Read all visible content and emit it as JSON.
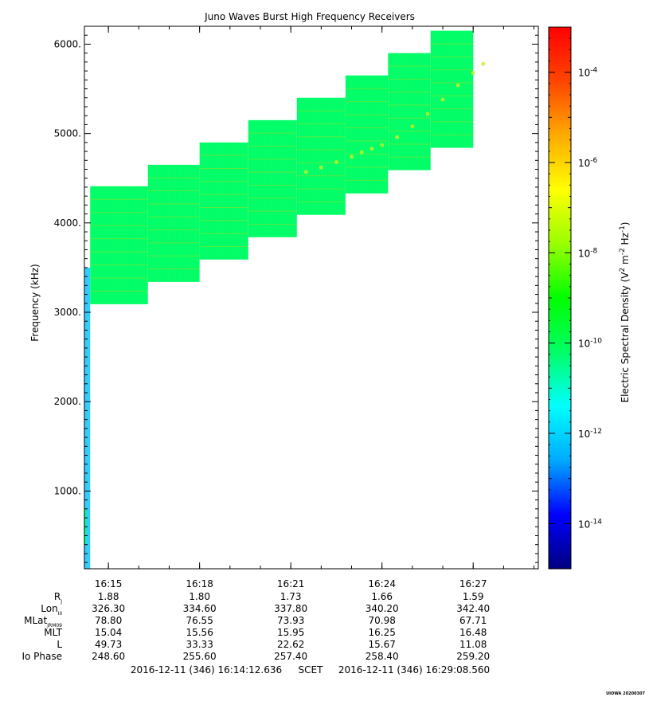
{
  "chart_data": {
    "type": "heatmap",
    "title": "Juno Waves Burst High Frequency Receivers",
    "ylabel": "Frequency (kHz)",
    "ylim": [
      130,
      6200
    ],
    "y_ticks": [
      "1000.",
      "2000.",
      "3000.",
      "4000.",
      "5000.",
      "6000."
    ],
    "x_ticks": [
      "16:15",
      "16:18",
      "16:21",
      "16:24",
      "16:27"
    ],
    "colorbar": {
      "label": "Electric Spectral Density (V2 m-2 Hz-1)",
      "label_parts": {
        "main": "Electric Spectral Density (V",
        "sup1": "2",
        "mid": " m",
        "sup2": "-2",
        "mid2": " Hz",
        "sup3": "-1",
        "end": ")"
      },
      "scale": "log",
      "range": [
        "1e-15",
        "1e-3"
      ],
      "ticks": [
        {
          "base": "10",
          "exp": "-4"
        },
        {
          "base": "10",
          "exp": "-6"
        },
        {
          "base": "10",
          "exp": "-8"
        },
        {
          "base": "10",
          "exp": "-10"
        },
        {
          "base": "10",
          "exp": "-12"
        },
        {
          "base": "10",
          "exp": "-14"
        }
      ],
      "colors": [
        "#000080",
        "#0000ff",
        "#00aaff",
        "#00ffff",
        "#00ff66",
        "#00ff00",
        "#99ff00",
        "#ffff00",
        "#ffaa00",
        "#ff4400",
        "#ff0000"
      ]
    },
    "background_color": "#00ff66",
    "bands": [
      {
        "t_start": "16:14:12",
        "t_end": "16:14:24",
        "f_lo": 130,
        "f_hi": 3500,
        "color": "#33ccff"
      },
      {
        "t_start": "16:14:24",
        "t_end": "16:16:18",
        "f_lo": 3090,
        "f_hi": 4410,
        "color": "#00ff66"
      },
      {
        "t_start": "16:16:18",
        "t_end": "16:18:00",
        "f_lo": 3340,
        "f_hi": 4650,
        "color": "#00ff66"
      },
      {
        "t_start": "16:18:00",
        "t_end": "16:19:36",
        "f_lo": 3590,
        "f_hi": 4900,
        "color": "#00ff66"
      },
      {
        "t_start": "16:19:36",
        "t_end": "16:21:12",
        "f_lo": 3840,
        "f_hi": 5150,
        "color": "#00ff66"
      },
      {
        "t_start": "16:21:12",
        "t_end": "16:22:48",
        "f_lo": 4090,
        "f_hi": 5400,
        "color": "#00ff66"
      },
      {
        "t_start": "16:22:48",
        "t_end": "16:24:12",
        "f_lo": 4330,
        "f_hi": 5650,
        "color": "#00ff66"
      },
      {
        "t_start": "16:24:12",
        "t_end": "16:25:36",
        "f_lo": 4590,
        "f_hi": 5900,
        "color": "#00ff66"
      },
      {
        "t_start": "16:25:36",
        "t_end": "16:27:00",
        "f_lo": 4840,
        "f_hi": 6150,
        "color": "#00ff66"
      }
    ],
    "ephemeris": {
      "rows": [
        {
          "label": "R",
          "sub": "J",
          "values": [
            "1.88",
            "1.80",
            "1.73",
            "1.66",
            "1.59"
          ]
        },
        {
          "label": "Lon",
          "sub": "III",
          "values": [
            "326.30",
            "334.60",
            "337.80",
            "340.20",
            "342.40"
          ]
        },
        {
          "label": "MLat",
          "sub": "JRM09",
          "values": [
            "78.80",
            "76.55",
            "73.93",
            "70.98",
            "67.71"
          ]
        },
        {
          "label": "MLT",
          "sub": "",
          "values": [
            "15.04",
            "15.56",
            "15.95",
            "16.25",
            "16.48"
          ]
        },
        {
          "label": "L",
          "sub": "",
          "values": [
            "49.73",
            "33.33",
            "22.62",
            "15.67",
            "11.08"
          ]
        },
        {
          "label": "Io Phase",
          "sub": "",
          "values": [
            "248.60",
            "255.60",
            "257.40",
            "258.40",
            "259.20"
          ]
        }
      ]
    },
    "time_range": {
      "start": "2016-12-11 (346) 16:14:12.636",
      "axis": "SCET",
      "end": "2016-12-11 (346) 16:29:08.560"
    },
    "credit": "UIOWA 20200307"
  }
}
